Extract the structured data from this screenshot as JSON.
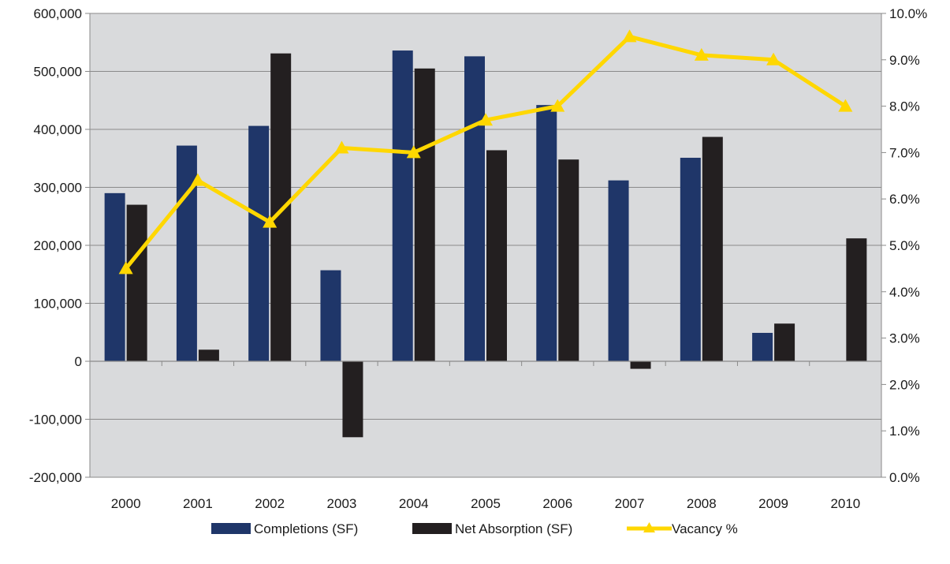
{
  "chart_data": {
    "type": "bar",
    "title": "",
    "categories": [
      "2000",
      "2001",
      "2002",
      "2003",
      "2004",
      "2005",
      "2006",
      "2007",
      "2008",
      "2009",
      "2010"
    ],
    "series": [
      {
        "name": "Completions (SF)",
        "kind": "bar",
        "axis": "left",
        "color": "#1f3669",
        "values": [
          290000,
          372000,
          406000,
          157000,
          536000,
          526000,
          442000,
          312000,
          351000,
          49000,
          null
        ]
      },
      {
        "name": "Net Absorption (SF)",
        "kind": "bar",
        "axis": "left",
        "color": "#231f20",
        "values": [
          270000,
          20000,
          531000,
          -131000,
          505000,
          364000,
          348000,
          -13000,
          387000,
          65000,
          212000
        ]
      },
      {
        "name": "Vacancy %",
        "kind": "line",
        "axis": "right",
        "color": "#ffd700",
        "marker": "triangle",
        "values": [
          4.5,
          6.4,
          5.5,
          7.1,
          7.0,
          7.7,
          8.0,
          9.5,
          9.1,
          9.0,
          8.0
        ]
      }
    ],
    "left_axis": {
      "ylim": [
        -200000,
        600000
      ],
      "ticks": [
        -200000,
        -100000,
        0,
        100000,
        200000,
        300000,
        400000,
        500000,
        600000
      ],
      "tick_labels": [
        "-200,000",
        "-100,000",
        "0",
        "100,000",
        "200,000",
        "300,000",
        "400,000",
        "500,000",
        "600,000"
      ]
    },
    "right_axis": {
      "ylim": [
        0,
        10
      ],
      "ticks": [
        0,
        1,
        2,
        3,
        4,
        5,
        6,
        7,
        8,
        9,
        10
      ],
      "tick_labels": [
        "0.0%",
        "1.0%",
        "2.0%",
        "3.0%",
        "4.0%",
        "5.0%",
        "6.0%",
        "7.0%",
        "8.0%",
        "9.0%",
        "10.0%"
      ]
    },
    "xlabel": "",
    "ylabel": "",
    "grid": true,
    "plot_background": "#d9dadc",
    "legend": {
      "position": "bottom",
      "items": [
        "Completions (SF)",
        "Net Absorption (SF)",
        "Vacancy %"
      ]
    }
  }
}
